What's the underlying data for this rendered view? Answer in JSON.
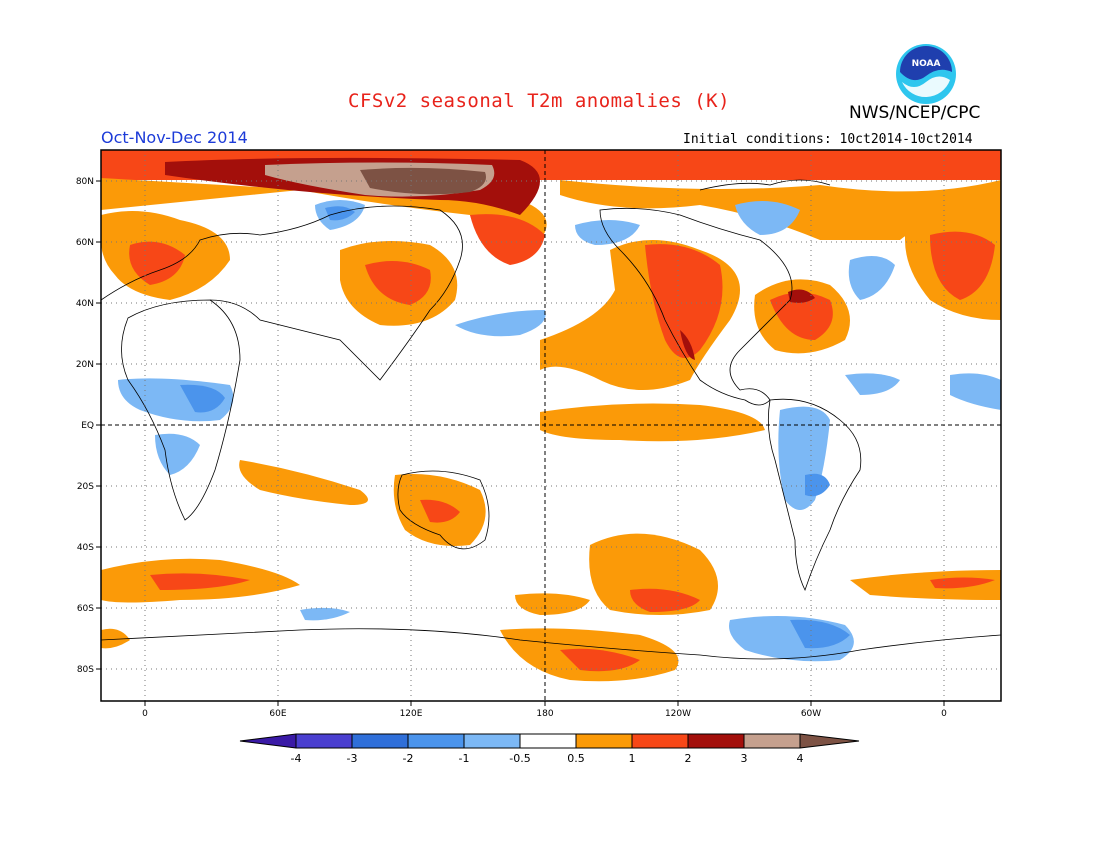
{
  "header": {
    "title": "CFSv2 seasonal T2m anomalies (K)",
    "agency": "NWS/NCEP/CPC",
    "season": "Oct-Nov-Dec 2014",
    "initial_conditions": "Initial conditions: 10ct2014-10ct2014",
    "logo_text": "NOAA"
  },
  "map": {
    "lat_labels": [
      "80N",
      "60N",
      "40N",
      "20N",
      "EQ",
      "20S",
      "40S",
      "60S",
      "80S"
    ],
    "lon_labels": [
      "0",
      "60E",
      "120E",
      "180",
      "120W",
      "60W",
      "0"
    ],
    "projection": "equirectangular",
    "grid": "dotted",
    "dashed_reference_lines": [
      "equator",
      "dateline"
    ]
  },
  "colorbar": {
    "labels": [
      "-4",
      "-3",
      "-2",
      "-1",
      "-0.5",
      "0.5",
      "1",
      "2",
      "3",
      "4"
    ],
    "colors": [
      "#3a1aa6",
      "#4a3fd0",
      "#2f6fd9",
      "#4b94ec",
      "#7cb8f5",
      "#ffffff",
      "#fb9a08",
      "#f74717",
      "#a30f0b",
      "#c5a08e",
      "#7d5244"
    ]
  },
  "legend_colors": {
    "warm_05_1": "#fb9a08",
    "warm_1_2": "#f74717",
    "warm_2_3": "#a30f0b",
    "warm_3_4": "#c5a08e",
    "warm_gt4": "#7d5244",
    "cool_05_1": "#7cb8f5",
    "cool_1_2": "#4b94ec",
    "cool_2_3": "#2f6fd9"
  }
}
